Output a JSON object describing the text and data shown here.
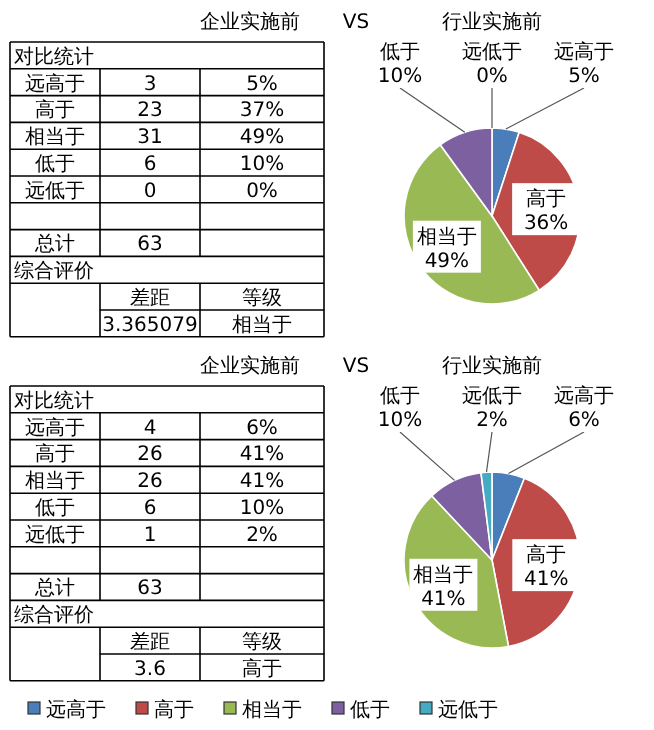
{
  "chart_data": [
    {
      "type": "pie",
      "title": "行业实施前",
      "categories": [
        "远高于",
        "高于",
        "相当于",
        "低于",
        "远低于"
      ],
      "values": [
        5,
        36,
        49,
        10,
        0
      ],
      "value_labels": [
        "5%",
        "36%",
        "49%",
        "10%",
        "0%"
      ],
      "colors": [
        "#4a7ebb",
        "#be4b48",
        "#98b954",
        "#7d60a0",
        "#46aac5"
      ],
      "legend": false,
      "annotations": [
        "企业实施前",
        "VS",
        "对比统计",
        "远高于",
        "3",
        "5%",
        "高于",
        "23",
        "37%",
        "相当于",
        "31",
        "49%",
        "低于",
        "6",
        "10%",
        "远低于",
        "0",
        "0%",
        "总计",
        "63",
        "综合评价",
        "差距",
        "等级",
        "3.365079",
        "相当于"
      ]
    },
    {
      "type": "pie",
      "title": "行业实施前",
      "categories": [
        "远高于",
        "高于",
        "相当于",
        "低于",
        "远低于"
      ],
      "values": [
        6,
        41,
        41,
        10,
        2
      ],
      "value_labels": [
        "6%",
        "41%",
        "41%",
        "10%",
        "2%"
      ],
      "colors": [
        "#4a7ebb",
        "#be4b48",
        "#98b954",
        "#7d60a0",
        "#46aac5"
      ],
      "legend": "bottom",
      "annotations": [
        "企业实施前",
        "VS",
        "对比统计",
        "远高于",
        "4",
        "6%",
        "高于",
        "26",
        "41%",
        "相当于",
        "26",
        "41%",
        "低于",
        "6",
        "10%",
        "远低于",
        "1",
        "2%",
        "总计",
        "63",
        "综合评价",
        "差距",
        "等级",
        "3.6",
        "高于"
      ]
    }
  ]
}
